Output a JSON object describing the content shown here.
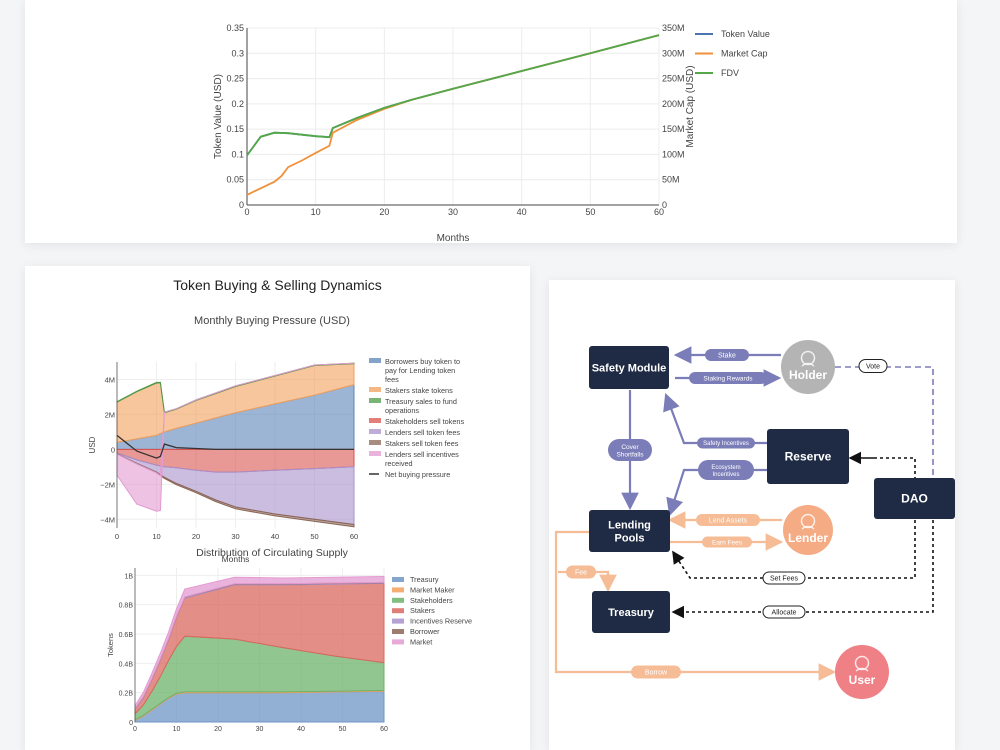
{
  "chart_data": [
    {
      "type": "line",
      "xlabel": "Months",
      "ylabel": "Token Value (USD)",
      "y2label": "Market Cap (USD)",
      "xlim": [
        0,
        60
      ],
      "ylim": [
        0,
        0.35
      ],
      "y2lim": [
        0,
        350000000
      ],
      "x_ticks": [
        "0",
        "10",
        "20",
        "30",
        "40",
        "50",
        "60"
      ],
      "y_ticks": [
        "0",
        "0.05",
        "0.1",
        "0.15",
        "0.2",
        "0.25",
        "0.3",
        "0.35"
      ],
      "y2_ticks": [
        "0",
        "50M",
        "100M",
        "150M",
        "200M",
        "250M",
        "300M",
        "350M"
      ],
      "legend_position": "right",
      "series": [
        {
          "name": "Token Value",
          "color": "#4c72b0",
          "axis": "y",
          "x": [
            0,
            2,
            4,
            6,
            8,
            10,
            12,
            12.5,
            16,
            20,
            24,
            30,
            40,
            50,
            60
          ],
          "y": [
            0.098,
            0.135,
            0.143,
            0.142,
            0.139,
            0.136,
            0.134,
            0.152,
            0.172,
            0.192,
            0.208,
            0.23,
            0.265,
            0.3,
            0.336
          ]
        },
        {
          "name": "Market Cap",
          "color": "#f0913a",
          "axis": "y2",
          "x": [
            0,
            2,
            4,
            5,
            6,
            8,
            10,
            12,
            12.5,
            16,
            20,
            24,
            30,
            40,
            50,
            60
          ],
          "y": [
            20000000,
            33000000,
            46000000,
            57000000,
            75000000,
            88000000,
            103000000,
            117000000,
            143000000,
            168000000,
            190000000,
            208000000,
            230000000,
            265000000,
            300000000,
            336000000
          ]
        },
        {
          "name": "FDV",
          "color": "#55a848",
          "axis": "y2",
          "x": [
            0,
            2,
            4,
            6,
            8,
            10,
            12,
            12.5,
            16,
            20,
            24,
            30,
            40,
            50,
            60
          ],
          "y": [
            98000000,
            135000000,
            143000000,
            142000000,
            139000000,
            136000000,
            134000000,
            152000000,
            172000000,
            192000000,
            208000000,
            230000000,
            265000000,
            300000000,
            336000000
          ]
        }
      ]
    },
    {
      "type": "area",
      "section_title": "Token Buying & Selling Dynamics",
      "title": "Monthly Buying Pressure (USD)",
      "xlabel": "Months",
      "ylabel": "USD",
      "xlim": [
        0,
        60
      ],
      "ylim": [
        -4500000,
        5000000
      ],
      "x_ticks": [
        "0",
        "10",
        "20",
        "30",
        "40",
        "50",
        "60"
      ],
      "y_ticks": [
        "−4M",
        "−2M",
        "0",
        "2M",
        "4M"
      ],
      "legend_position": "right",
      "x": [
        0,
        5,
        10,
        11,
        12,
        15,
        20,
        25,
        30,
        40,
        50,
        60
      ],
      "series": [
        {
          "name": "Borrowers buy token to pay for Lending token fees",
          "color": "#5b84b8",
          "values": [
            400000,
            600000,
            800000,
            900000,
            1000000,
            1200000,
            1500000,
            1800000,
            2100000,
            2600000,
            3100000,
            3700000
          ]
        },
        {
          "name": "Stakers stake tokens",
          "color": "#f2a05c",
          "values": [
            2300000,
            2700000,
            3000000,
            2900000,
            1100000,
            1100000,
            1300000,
            1400000,
            1500000,
            1600000,
            1700000,
            1200000
          ]
        },
        {
          "name": "Treasury sales to fund operations",
          "color": "#4f9a4a",
          "values": [
            30000,
            30000,
            30000,
            30000,
            30000,
            30000,
            30000,
            30000,
            30000,
            30000,
            30000,
            30000
          ]
        },
        {
          "name": "Stakeholders sell tokens",
          "color": "#d9534f",
          "values": [
            -200000,
            -600000,
            -900000,
            -950000,
            -1000000,
            -1050000,
            -1200000,
            -1300000,
            -1300000,
            -1200000,
            -1100000,
            -1000000
          ]
        },
        {
          "name": "Lenders sell token fees",
          "color": "#a991cc",
          "values": [
            -50000,
            -200000,
            -400000,
            -500000,
            -600000,
            -900000,
            -1200000,
            -1600000,
            -2000000,
            -2500000,
            -2900000,
            -3300000
          ]
        },
        {
          "name": "Stakers sell token fees",
          "color": "#8b6656",
          "values": [
            -20000,
            -30000,
            -40000,
            -50000,
            -60000,
            -70000,
            -80000,
            -90000,
            -100000,
            -110000,
            -120000,
            -130000
          ]
        },
        {
          "name": "Lenders sell incentives received",
          "color": "#e39ad1",
          "values": [
            -1200000,
            -2300000,
            -2200000,
            -2000000,
            0,
            0,
            0,
            0,
            0,
            0,
            0,
            0
          ]
        },
        {
          "name": "Net buying pressure",
          "color": "#333333",
          "type": "line",
          "values": [
            800000,
            -100000,
            -500000,
            -400000,
            300000,
            100000,
            50000,
            0,
            0,
            0,
            0,
            0
          ]
        }
      ]
    },
    {
      "type": "area",
      "title": "Distribution of Circulating Supply",
      "xlabel": "",
      "ylabel": "Tokens",
      "xlim": [
        0,
        60
      ],
      "ylim": [
        0,
        1050000000
      ],
      "x_ticks": [
        "0",
        "10",
        "20",
        "30",
        "40",
        "50",
        "60"
      ],
      "y_ticks": [
        "0",
        "0.2B",
        "0.4B",
        "0.6B",
        "0.8B",
        "1B"
      ],
      "legend_position": "right",
      "x": [
        0,
        2,
        4,
        6,
        8,
        10,
        12,
        24,
        36,
        48,
        60
      ],
      "series": [
        {
          "name": "Treasury",
          "color": "#6d95c6",
          "values": [
            10000000,
            40000000,
            80000000,
            120000000,
            160000000,
            190000000,
            200000000,
            200000000,
            200000000,
            205000000,
            210000000
          ]
        },
        {
          "name": "Market Maker",
          "color": "#f2a05c",
          "values": [
            5000000,
            5000000,
            5000000,
            5000000,
            5000000,
            5000000,
            5000000,
            5000000,
            5000000,
            5000000,
            5000000
          ]
        },
        {
          "name": "Stakeholders",
          "color": "#6db36b",
          "values": [
            40000000,
            70000000,
            120000000,
            180000000,
            250000000,
            320000000,
            380000000,
            360000000,
            300000000,
            240000000,
            190000000
          ]
        },
        {
          "name": "Stakers",
          "color": "#d9685f",
          "values": [
            30000000,
            50000000,
            80000000,
            110000000,
            140000000,
            200000000,
            260000000,
            370000000,
            430000000,
            490000000,
            540000000
          ]
        },
        {
          "name": "Incentives Reserve",
          "color": "#a991cc",
          "values": [
            5000000,
            5000000,
            5000000,
            5000000,
            5000000,
            5000000,
            5000000,
            5000000,
            5000000,
            5000000,
            5000000
          ]
        },
        {
          "name": "Borrower",
          "color": "#8b6656",
          "values": [
            2000000,
            2000000,
            2000000,
            2000000,
            2000000,
            2000000,
            2000000,
            2000000,
            2000000,
            2000000,
            2000000
          ]
        },
        {
          "name": "Market",
          "color": "#e39ad1",
          "values": [
            20000000,
            30000000,
            35000000,
            40000000,
            45000000,
            50000000,
            55000000,
            45000000,
            40000000,
            40000000,
            40000000
          ]
        }
      ]
    }
  ],
  "diagram": {
    "nodes": {
      "safety_module": "Safety Module",
      "lending_pools": "Lending\nPools",
      "treasury": "Treasury",
      "reserve": "Reserve",
      "dao": "DAO",
      "holder": "Holder",
      "lender": "Lender",
      "user": "User"
    },
    "edges": {
      "stake": "Stake",
      "staking_rewards": "Staking Rewards",
      "vote": "Vote",
      "cover_shortfalls": "Cover\nShortfalls",
      "safety_incentives": "Safety Incentives",
      "ecosystem_incentives": "Ecosystem\nIncentives",
      "lend_assets": "Lend Assets",
      "earn_fees": "Earn Fees",
      "fee": "Fee",
      "set_fees": "Set Fees",
      "allocate": "Allocate",
      "borrow": "Borrow"
    },
    "colors": {
      "dark_node": "#1f2a44",
      "purple_flow": "#7b7db8",
      "orange_flow": "#f5bc96",
      "holder": "#b4b4b4",
      "lender": "#f5ab84",
      "user": "#ef8085"
    }
  }
}
